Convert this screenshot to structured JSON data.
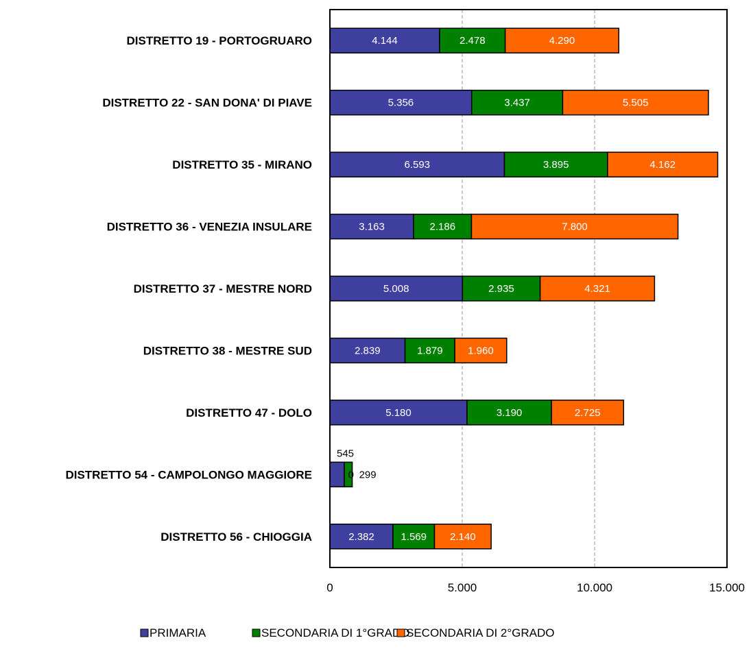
{
  "chart_data": {
    "type": "bar",
    "orientation": "horizontal",
    "stacked": true,
    "categories": [
      "DISTRETTO 19 - PORTOGRUARO",
      "DISTRETTO 22 - SAN DONA' DI PIAVE",
      "DISTRETTO 35 - MIRANO",
      "DISTRETTO 36 - VENEZIA INSULARE",
      "DISTRETTO 37 - MESTRE NORD",
      "DISTRETTO 38 - MESTRE SUD",
      "DISTRETTO 47 - DOLO",
      "DISTRETTO 54 - CAMPOLONGO MAGGIORE",
      "DISTRETTO 56 - CHIOGGIA"
    ],
    "series": [
      {
        "name": "PRIMARIA",
        "color": "#3f3f9f",
        "values": [
          4144,
          5356,
          6593,
          3163,
          5008,
          2839,
          5180,
          545,
          2382
        ],
        "labels": [
          "4.144",
          "5.356",
          "6.593",
          "3.163",
          "5.008",
          "2.839",
          "5.180",
          "545",
          "2.382"
        ]
      },
      {
        "name": "SECONDARIA DI 1°GRADO",
        "color": "#008000",
        "values": [
          2478,
          3437,
          3895,
          2186,
          2935,
          1879,
          3190,
          299,
          1569
        ],
        "labels": [
          "2.478",
          "3.437",
          "3.895",
          "2.186",
          "2.935",
          "1.879",
          "3.190",
          "299",
          "1.569"
        ]
      },
      {
        "name": "SECONDARIA DI 2°GRADO",
        "color": "#ff6600",
        "values": [
          4290,
          5505,
          4162,
          7800,
          4321,
          1960,
          2725,
          0,
          2140
        ],
        "labels": [
          "4.290",
          "5.505",
          "4.162",
          "7.800",
          "4.321",
          "1.960",
          "2.725",
          "0",
          "2.140"
        ]
      }
    ],
    "xlim": [
      0,
      15000
    ],
    "xticks": [
      0,
      5000,
      10000,
      15000
    ],
    "xtick_labels": [
      "0",
      "5.000",
      "10.000",
      "15.000"
    ],
    "grid": "vertical dashed",
    "legend_position": "bottom"
  }
}
